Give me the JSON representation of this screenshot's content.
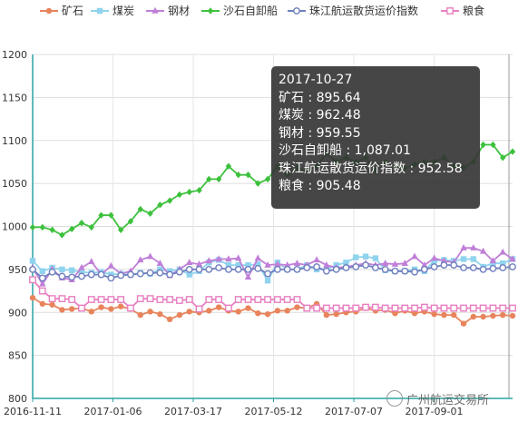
{
  "chart_data": {
    "type": "line",
    "title": "",
    "xlabel": "",
    "ylabel": "",
    "ylim": [
      800,
      1200
    ],
    "yticks": [
      800,
      850,
      900,
      950,
      1000,
      1050,
      1100,
      1150,
      1200
    ],
    "grid": true,
    "legend_placement": "top",
    "xtick_labels": [
      "2016-11-11",
      "2017-01-06",
      "2017-03-17",
      "2017-05-12",
      "2017-07-07",
      "2017-09-01"
    ],
    "series": [
      {
        "name": "矿石",
        "color": "#e8845c",
        "marker": "circle",
        "values": [
          917,
          910,
          909,
          903,
          904,
          905,
          901,
          906,
          904,
          907,
          904,
          897,
          901,
          898,
          892,
          897,
          901,
          900,
          902,
          906,
          902,
          901,
          905,
          899,
          898,
          902,
          902,
          906,
          905,
          910,
          897,
          898,
          900,
          901,
          905,
          902,
          903,
          899,
          902,
          899,
          901,
          898,
          897,
          897,
          887,
          895,
          895,
          896,
          897,
          896
        ]
      },
      {
        "name": "煤炭",
        "color": "#8fd3ee",
        "marker": "square",
        "values": [
          960,
          948,
          952,
          950,
          949,
          947,
          946,
          947,
          944,
          945,
          944,
          946,
          945,
          950,
          948,
          950,
          944,
          948,
          958,
          961,
          955,
          955,
          955,
          956,
          937,
          958,
          950,
          950,
          955,
          950,
          950,
          955,
          958,
          964,
          965,
          963,
          949,
          948,
          948,
          950,
          948,
          960,
          961,
          960,
          962,
          962,
          953,
          957,
          957,
          962
        ]
      },
      {
        "name": "钢材",
        "color": "#c07fd8",
        "marker": "triangle",
        "values": [
          952,
          933,
          950,
          940,
          938,
          952,
          959,
          944,
          954,
          945,
          948,
          961,
          965,
          957,
          943,
          950,
          958,
          956,
          960,
          962,
          962,
          963,
          941,
          963,
          955,
          956,
          955,
          957,
          955,
          961,
          955,
          952,
          953,
          955,
          957,
          955,
          957,
          956,
          957,
          965,
          955,
          963,
          960,
          958,
          975,
          975,
          971,
          960,
          970,
          962
        ]
      },
      {
        "name": "沙石自卸船",
        "color": "#3dc13d",
        "marker": "diamond",
        "values": [
          999,
          999,
          996,
          990,
          997,
          1004,
          999,
          1013,
          1013,
          996,
          1006,
          1020,
          1015,
          1025,
          1030,
          1037,
          1040,
          1042,
          1055,
          1055,
          1070,
          1060,
          1060,
          1050,
          1055,
          1070,
          1060,
          1068,
          1065,
          1070,
          1085,
          1075,
          1080,
          1075,
          1080,
          1065,
          1075,
          1070,
          1068,
          1072,
          1075,
          1075,
          1080,
          1070,
          1068,
          1075,
          1095,
          1095,
          1080,
          1087
        ]
      },
      {
        "name": "珠江航运散货运价指数",
        "color": "#6f7fbf",
        "marker": "circle-open",
        "values": [
          950,
          940,
          947,
          942,
          941,
          942,
          944,
          944,
          940,
          943,
          944,
          945,
          946,
          946,
          944,
          947,
          950,
          950,
          950,
          952,
          950,
          950,
          950,
          951,
          945,
          950,
          950,
          950,
          952,
          953,
          948,
          950,
          952,
          953,
          955,
          952,
          950,
          948,
          948,
          947,
          950,
          953,
          955,
          955,
          952,
          952,
          950,
          951,
          952,
          953
        ]
      },
      {
        "name": "粮食",
        "color": "#e87fc0",
        "marker": "square-open",
        "values": [
          938,
          925,
          916,
          916,
          915,
          905,
          915,
          915,
          915,
          915,
          905,
          916,
          916,
          915,
          915,
          914,
          915,
          904,
          915,
          915,
          905,
          915,
          915,
          915,
          915,
          915,
          915,
          915,
          905,
          905,
          905,
          905,
          905,
          905,
          906,
          906,
          905,
          905,
          905,
          905,
          906,
          905,
          905,
          905,
          905,
          905,
          905,
          905,
          905,
          905
        ]
      }
    ]
  },
  "tooltip": {
    "date": "2017-10-27",
    "lines": [
      "矿石 : 895.64",
      "煤炭 : 962.48",
      "钢材 : 959.55",
      "沙石自卸船 : 1,087.01",
      "珠江航运散货运价指数 : 952.58",
      "粮食 : 905.48"
    ]
  },
  "watermark": {
    "text": "广州航运交易所"
  }
}
